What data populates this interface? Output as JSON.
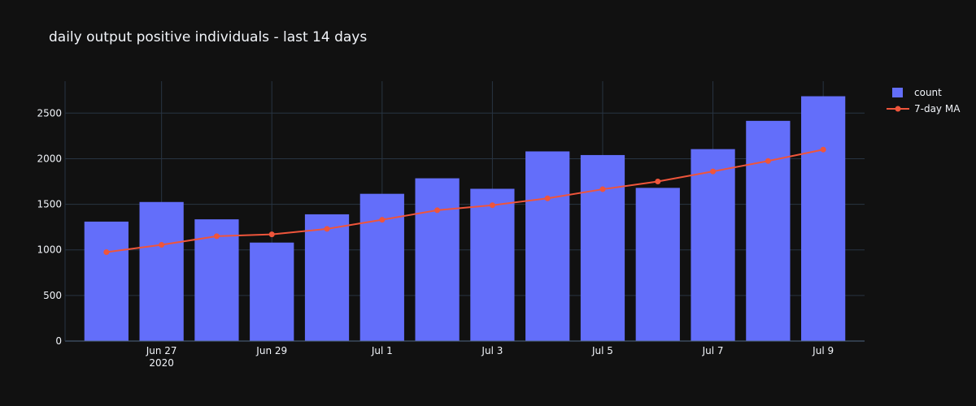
{
  "chart_data": {
    "type": "bar",
    "title": "daily output positive individuals - last 14 days",
    "xlabel": "",
    "ylabel": "",
    "ylim": [
      0,
      2850
    ],
    "y_ticks": [
      0,
      500,
      1000,
      1500,
      2000,
      2500
    ],
    "categories": [
      "2020-06-26",
      "2020-06-27",
      "2020-06-28",
      "2020-06-29",
      "2020-06-30",
      "2020-07-01",
      "2020-07-02",
      "2020-07-03",
      "2020-07-04",
      "2020-07-05",
      "2020-07-06",
      "2020-07-07",
      "2020-07-08",
      "2020-07-09"
    ],
    "x_ticks": [
      {
        "index": 1,
        "label": "Jun 27",
        "sublabel": "2020"
      },
      {
        "index": 3,
        "label": "Jun 29"
      },
      {
        "index": 5,
        "label": "Jul 1"
      },
      {
        "index": 7,
        "label": "Jul 3"
      },
      {
        "index": 9,
        "label": "Jul 5"
      },
      {
        "index": 11,
        "label": "Jul 7"
      },
      {
        "index": 13,
        "label": "Jul 9"
      }
    ],
    "series": [
      {
        "name": "count",
        "type": "bar",
        "color": "#636efa",
        "values": [
          1310,
          1525,
          1335,
          1080,
          1390,
          1615,
          1785,
          1670,
          2080,
          2040,
          1680,
          2105,
          2415,
          2685
        ]
      },
      {
        "name": "7-day MA",
        "type": "line",
        "color": "#ef553b",
        "values": [
          975,
          1055,
          1150,
          1170,
          1230,
          1330,
          1435,
          1490,
          1565,
          1665,
          1750,
          1860,
          1975,
          2100
        ]
      }
    ],
    "grid": true,
    "legend": "top-right"
  }
}
